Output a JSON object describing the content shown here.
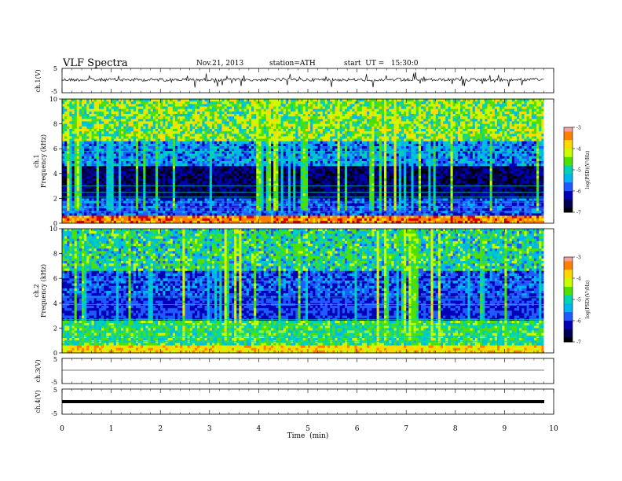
{
  "header": {
    "title": "VLF Spectra",
    "date": "Nov.21, 2013",
    "station": "station=ATH",
    "start": "start  UT =   15:30:0"
  },
  "colors": {
    "colormap": [
      "#ffffff",
      "#f2a0a0",
      "#d40000",
      "#ff8000",
      "#ffd800",
      "#c8ff00",
      "#50e000",
      "#00d2b4",
      "#00b4f0",
      "#1e5aff",
      "#0000b4",
      "#000050",
      "#000000"
    ],
    "background": "#ffffff",
    "trace": "#000000"
  },
  "chart_data": [
    {
      "type": "line",
      "panel": "ch1-waveform",
      "ylabel": "ch.1(V)",
      "yticks": [
        "5",
        "-5"
      ],
      "ylim": [
        -5,
        5
      ],
      "xlim": [
        0,
        10
      ],
      "series": [
        {
          "description_level": 0,
          "baseline": 0
        }
      ]
    },
    {
      "type": "heatmap",
      "panel": "ch1-spectrogram",
      "ylabel": "ch.1\nFrequency (kHz)",
      "yticks": [
        "0",
        "2",
        "4",
        "6",
        "8",
        "10"
      ],
      "ylim": [
        0,
        10
      ],
      "xlim": [
        0,
        9.8
      ],
      "colorbar": {
        "label": "log(PSD)(V²/Hz)",
        "ticks": [
          "-3",
          "-4",
          "-5",
          "-6",
          "-7"
        ],
        "range": [
          -7,
          -3
        ]
      }
    },
    {
      "type": "heatmap",
      "panel": "ch2-spectrogram",
      "ylabel": "ch.2\nFrequency (kHz)",
      "yticks": [
        "0",
        "2",
        "4",
        "6",
        "8",
        "10"
      ],
      "ylim": [
        0,
        10
      ],
      "xlim": [
        0,
        9.8
      ],
      "colorbar": {
        "label": "log(PSD)(V²/Hz)",
        "ticks": [
          "-3",
          "-4",
          "-5",
          "-6",
          "-7"
        ],
        "range": [
          -7,
          -3
        ]
      }
    },
    {
      "type": "line",
      "panel": "ch3-waveform",
      "ylabel": "ch.3(V)",
      "yticks": [
        "5",
        "-5"
      ],
      "ylim": [
        -5,
        5
      ],
      "xlim": [
        0,
        10
      ],
      "series": [
        {
          "level": 0
        }
      ]
    },
    {
      "type": "line",
      "panel": "ch4-waveform",
      "ylabel": "ch.4(V)",
      "yticks": [
        "5",
        "-5"
      ],
      "ylim": [
        -5,
        5
      ],
      "xlim": [
        0,
        10
      ],
      "series": [
        {
          "level": 0
        }
      ]
    }
  ],
  "xaxis": {
    "label": "Time  (min)",
    "ticks": [
      "0",
      "1",
      "2",
      "3",
      "4",
      "5",
      "6",
      "7",
      "8",
      "9",
      "10"
    ],
    "range": [
      0,
      10
    ]
  }
}
